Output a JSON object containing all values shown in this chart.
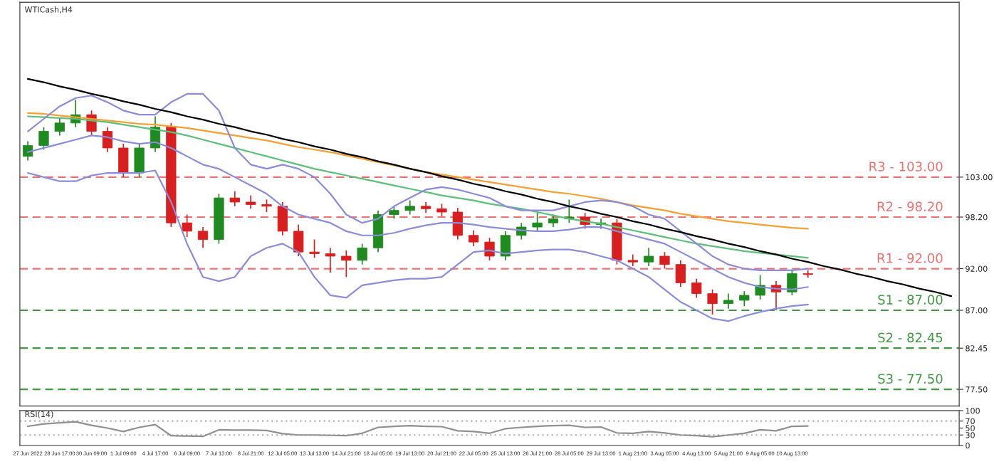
{
  "chart_data": [
    {
      "type": "candlestick",
      "title": "WTICash,H4",
      "tick_labels": "y",
      "categories": [
        null,
        null,
        null,
        null,
        null,
        null,
        null,
        null,
        null,
        null,
        null,
        null,
        null,
        null,
        null,
        null,
        null,
        null,
        null,
        null,
        null,
        null,
        null,
        null,
        null,
        null,
        null,
        null,
        null,
        null,
        null,
        null,
        null,
        null,
        null,
        null,
        null,
        null,
        null,
        null,
        null,
        null,
        null,
        null,
        null,
        null,
        null,
        null,
        null,
        null,
        null,
        null,
        null,
        null,
        null,
        null,
        null,
        null,
        null
      ],
      "ohlc": [
        [
          105.5,
          107.3,
          105,
          106.8
        ],
        [
          106.8,
          109,
          106.3,
          108.5
        ],
        [
          108.5,
          110,
          108,
          109.5
        ],
        [
          109.5,
          112.3,
          109,
          110.5
        ],
        [
          110.5,
          111,
          108,
          108.5
        ],
        [
          108.5,
          109,
          106,
          106.5
        ],
        [
          106.5,
          107,
          103,
          103.5
        ],
        [
          103.5,
          107,
          103,
          106.5
        ],
        [
          106.5,
          110.3,
          106,
          109
        ],
        [
          109,
          109.5,
          97,
          97.5
        ],
        [
          97.5,
          98.5,
          95.8,
          96.5
        ],
        [
          96.5,
          97,
          94.5,
          95.5
        ],
        [
          95.5,
          101,
          95,
          100.5
        ],
        [
          100.5,
          101.3,
          99.5,
          100
        ],
        [
          100,
          100.8,
          99.2,
          99.7
        ],
        [
          99.7,
          100.3,
          98.8,
          99.5
        ],
        [
          99.5,
          100,
          96,
          96.5
        ],
        [
          96.5,
          97.3,
          93.5,
          94
        ],
        [
          94,
          95.5,
          93.3,
          93.8
        ],
        [
          93.8,
          94.5,
          91.5,
          93.5
        ],
        [
          93.5,
          94.2,
          91,
          93
        ],
        [
          93,
          95,
          92.5,
          94.5
        ],
        [
          94.5,
          99,
          94,
          98.5
        ],
        [
          98.5,
          99.5,
          98,
          99
        ],
        [
          99,
          100.2,
          98.5,
          99.5
        ],
        [
          99.5,
          100,
          98.7,
          99.2
        ],
        [
          99.2,
          99.8,
          98.3,
          98.8
        ],
        [
          98.8,
          99.3,
          95.5,
          96
        ],
        [
          96,
          96.6,
          94.7,
          95.2
        ],
        [
          95.2,
          95.7,
          93,
          93.5
        ],
        [
          93.5,
          96.5,
          93,
          96
        ],
        [
          96,
          97.5,
          95.5,
          97
        ],
        [
          97,
          98.8,
          96.5,
          97.5
        ],
        [
          97.5,
          98.5,
          97,
          98
        ],
        [
          98,
          100.3,
          97.5,
          98.2
        ],
        [
          98.2,
          98.7,
          96.8,
          97.3
        ],
        [
          97.3,
          98,
          96.8,
          97.5
        ],
        [
          97.5,
          98,
          92.5,
          93
        ],
        [
          93,
          93.7,
          92.3,
          92.8
        ],
        [
          92.8,
          94.5,
          92.3,
          93.5
        ],
        [
          93.5,
          94,
          92,
          92.5
        ],
        [
          92.5,
          93,
          89.8,
          90.3
        ],
        [
          90.3,
          90.8,
          88.5,
          89
        ],
        [
          89,
          89.5,
          86.5,
          87.8
        ],
        [
          87.8,
          89,
          87.2,
          88.2
        ],
        [
          88.2,
          89.3,
          87.5,
          88.8
        ],
        [
          88.8,
          91.2,
          88.3,
          90
        ],
        [
          90,
          90.5,
          87,
          89.2
        ],
        [
          89.2,
          91.9,
          88.8,
          91.4
        ],
        [
          91.4,
          91.8,
          90.9,
          91.3
        ],
        null,
        null,
        null,
        null,
        null,
        null,
        null,
        null,
        null
      ],
      "colors": [
        "#1f8a1f",
        "#1f8a1f",
        "#1f8a1f",
        "#1f8a1f",
        "#d81e1e",
        "#d81e1e",
        "#d81e1e",
        "#1f8a1f",
        "#1f8a1f",
        "#d81e1e",
        "#d81e1e",
        "#d81e1e",
        "#1f8a1f",
        "#d81e1e",
        "#d81e1e",
        "#d81e1e",
        "#d81e1e",
        "#d81e1e",
        "#d81e1e",
        "#d81e1e",
        "#d81e1e",
        "#1f8a1f",
        "#1f8a1f",
        "#1f8a1f",
        "#1f8a1f",
        "#d81e1e",
        "#d81e1e",
        "#d81e1e",
        "#d81e1e",
        "#d81e1e",
        "#1f8a1f",
        "#1f8a1f",
        "#1f8a1f",
        "#1f8a1f",
        "#1f8a1f",
        "#d81e1e",
        "#1f8a1f",
        "#d81e1e",
        "#d81e1e",
        "#1f8a1f",
        "#d81e1e",
        "#d81e1e",
        "#d81e1e",
        "#d81e1e",
        "#1f8a1f",
        "#1f8a1f",
        "#1f8a1f",
        "#d81e1e",
        "#1f8a1f",
        "#d81e1e",
        null,
        null,
        null,
        null,
        null,
        null,
        null,
        null,
        null
      ],
      "series": [
        {
          "type": "line",
          "color": "#f5a030",
          "values": [
            110.7,
            110.6,
            110.4,
            110.2,
            110,
            109.8,
            109.6,
            109.4,
            109.3,
            109.1,
            108.9,
            108.6,
            108.3,
            108,
            107.7,
            107.4,
            107,
            106.6,
            106.3,
            106,
            105.6,
            105.2,
            104.8,
            104.4,
            104,
            103.6,
            103.3,
            103,
            102.7,
            102.4,
            102.1,
            101.8,
            101.5,
            101.2,
            101,
            100.7,
            100.4,
            100,
            99.6,
            99.3,
            99,
            98.6,
            98.3,
            98,
            97.7,
            97.5,
            97.3,
            97.1,
            96.9,
            96.8,
            null,
            null,
            null,
            null,
            null,
            null,
            null,
            null,
            null
          ]
        },
        {
          "type": "line",
          "color": "#5cc07a",
          "values": [
            110.3,
            110.2,
            110.1,
            110,
            109.8,
            109.6,
            109.3,
            109,
            108.7,
            108.4,
            108,
            107.5,
            107,
            106.5,
            106,
            105.5,
            105,
            104.5,
            104,
            103.6,
            103.2,
            102.8,
            102.4,
            102,
            101.6,
            101.2,
            100.8,
            100.5,
            100.2,
            99.8,
            99.5,
            99.2,
            98.8,
            98.4,
            98,
            97.7,
            97.4,
            97,
            96.6,
            96.2,
            95.8,
            95.4,
            95,
            94.7,
            94.4,
            94.1,
            93.9,
            93.7,
            93.5,
            93.3,
            null,
            null,
            null,
            null,
            null,
            null,
            null,
            null,
            null
          ]
        },
        {
          "type": "line",
          "color": "#8c8cdc",
          "values": [
            108.5,
            110,
            111.5,
            112.5,
            112.8,
            112,
            111,
            110.5,
            110.5,
            112,
            113,
            113,
            111,
            106.5,
            104.5,
            104,
            104.5,
            104,
            103,
            101,
            98.5,
            97.5,
            98,
            99.5,
            100.5,
            101.5,
            101.8,
            101.5,
            101,
            100.5,
            99.5,
            99,
            99,
            99,
            99.5,
            100,
            100.2,
            100,
            99.5,
            98.5,
            98,
            96.5,
            95,
            93.5,
            92.5,
            92,
            91.8,
            91.8,
            91.8,
            92,
            null,
            null,
            null,
            null,
            null,
            null,
            null,
            null,
            null
          ]
        },
        {
          "type": "line",
          "color": "#8c8cdc",
          "values": [
            106,
            106.5,
            107,
            107.5,
            108,
            107.8,
            107.3,
            107,
            107.2,
            106.5,
            105.5,
            104.5,
            104,
            103,
            102,
            101,
            99.5,
            98.5,
            98,
            97.5,
            96.5,
            96,
            96,
            96.3,
            96.8,
            97.2,
            97.5,
            97.5,
            97.3,
            97,
            96.8,
            96.6,
            96.5,
            96.5,
            96.7,
            97,
            97,
            96.5,
            96,
            95.5,
            95,
            94,
            93,
            92,
            91,
            90.3,
            89.8,
            89.6,
            89.5,
            89.8,
            null,
            null,
            null,
            null,
            null,
            null,
            null,
            null,
            null
          ]
        },
        {
          "type": "line",
          "color": "#8c8cdc",
          "values": [
            103.5,
            103,
            102.5,
            102.5,
            103.2,
            103.5,
            103.5,
            103.5,
            103.8,
            100,
            95,
            91,
            90.5,
            91,
            93.5,
            94.5,
            95,
            94,
            91,
            88.8,
            88.5,
            90,
            90.3,
            90.6,
            90.8,
            90.8,
            91,
            92.5,
            94,
            94.2,
            93.8,
            94,
            94.2,
            94.3,
            94.3,
            94,
            93.5,
            93,
            92,
            91,
            89.5,
            88,
            87,
            86,
            85.7,
            86.3,
            86.8,
            87.2,
            87.5,
            87.7,
            null,
            null,
            null,
            null,
            null,
            null,
            null,
            null,
            null
          ]
        },
        {
          "type": "line",
          "color": "#000000",
          "values": [
            114.8,
            114.4,
            113.9,
            113.5,
            113,
            112.6,
            112.1,
            111.7,
            111.2,
            110.8,
            110.3,
            109.9,
            109.4,
            109,
            108.5,
            108.1,
            107.6,
            107.2,
            106.7,
            106.3,
            105.8,
            105.4,
            104.9,
            104.5,
            104,
            103.6,
            103.1,
            102.7,
            102.2,
            101.8,
            101.3,
            100.9,
            100.4,
            100,
            99.5,
            99.1,
            98.6,
            98.2,
            97.7,
            97.3,
            96.8,
            96.4,
            95.9,
            95.5,
            95,
            94.6,
            94.1,
            93.7,
            93.2,
            92.8,
            92.3,
            91.9,
            91.4,
            91,
            90.5,
            90.1,
            89.6,
            89.2,
            88.7
          ]
        }
      ],
      "ylim": [
        75.5,
        124
      ],
      "yticks": [
        {
          "value": 77.5,
          "label": "77.50"
        },
        {
          "value": 82.45,
          "label": "82.45"
        },
        {
          "value": 87,
          "label": "87.00"
        },
        {
          "value": 92,
          "label": "92.00"
        },
        {
          "value": 98.2,
          "label": "98.20"
        },
        {
          "value": 103,
          "label": "103.00"
        }
      ],
      "ref_lines": [
        {
          "axis": "y",
          "value": 103,
          "label": "R3 - 103.00",
          "color": "#f07070",
          "line_style": "dashed"
        },
        {
          "axis": "y",
          "value": 98.2,
          "label": "R2 - 98.20",
          "color": "#f07070",
          "line_style": "dashed"
        },
        {
          "axis": "y",
          "value": 92,
          "label": "R1 - 92.00",
          "color": "#f07070",
          "line_style": "dashed"
        },
        {
          "axis": "y",
          "value": 87,
          "label": "S1 - 87.00",
          "color": "#3f9a3f",
          "line_style": "dashed"
        },
        {
          "axis": "y",
          "value": 82.45,
          "label": "S2 - 82.45",
          "color": "#3f9a3f",
          "line_style": "dashed"
        },
        {
          "axis": "y",
          "value": 77.5,
          "label": "S3 - 77.50",
          "color": "#3f9a3f",
          "line_style": "dashed"
        }
      ]
    },
    {
      "type": "line",
      "title": "RSI(14)",
      "categories": [
        "27 Jun 2022",
        null,
        "28 Jun 17:00",
        null,
        "30 Jun 09:00",
        null,
        "1 Jul 09:00",
        null,
        "4 Jul 17:00",
        null,
        "6 Jul 09:00",
        null,
        "7 Jul 13:00",
        null,
        "8 Jul 21:00",
        null,
        "12 Jul 05:00",
        null,
        "13 Jul 13:00",
        null,
        "14 Jul 21:00",
        null,
        "18 Jul 05:00",
        null,
        "19 Jul 13:00",
        null,
        "20 Jul 21:00",
        null,
        "22 Jul 05:00",
        null,
        "25 Jul 13:00",
        null,
        "26 Jul 21:00",
        null,
        "28 Jul 05:00",
        null,
        "29 Jul 13:00",
        null,
        "1 Aug 21:00",
        null,
        "3 Aug 05:00",
        null,
        "4 Aug 13:00",
        null,
        "5 Aug 21:00",
        null,
        "9 Aug 05:00",
        null,
        "10 Aug 13:00",
        null,
        null,
        null,
        null,
        null,
        null,
        null,
        null,
        null,
        null
      ],
      "series": [
        {
          "color": "#909090",
          "values": [
            55,
            62,
            65,
            68,
            58,
            50,
            40,
            52,
            60,
            28,
            27,
            26,
            45,
            44,
            44,
            43,
            34,
            30,
            30,
            29,
            28,
            35,
            52,
            55,
            57,
            55,
            54,
            42,
            40,
            35,
            48,
            52,
            55,
            57,
            58,
            52,
            53,
            36,
            35,
            40,
            36,
            30,
            28,
            25,
            30,
            35,
            45,
            42,
            55,
            56,
            null,
            null,
            null,
            null,
            null,
            null,
            null,
            null,
            null
          ]
        }
      ],
      "ylim": [
        0,
        100
      ],
      "yticks": [
        0,
        30,
        50,
        70,
        100
      ],
      "ref_lines": [
        {
          "axis": "y",
          "value": 70,
          "color": "#b0b0b0",
          "line_style": "dotted"
        },
        {
          "axis": "y",
          "value": 30,
          "color": "#b0b0b0",
          "line_style": "dotted"
        }
      ]
    }
  ]
}
